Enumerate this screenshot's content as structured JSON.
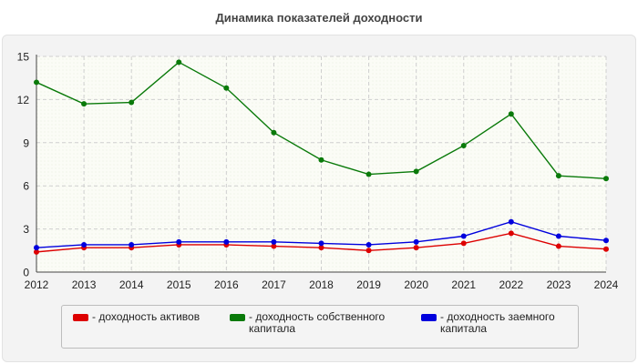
{
  "chart_data": {
    "type": "line",
    "title": "Динамика показателей доходности",
    "xlabel": "",
    "ylabel": "",
    "x": [
      "2012",
      "2013",
      "2014",
      "2015",
      "2016",
      "2017",
      "2018",
      "2019",
      "2020",
      "2021",
      "2022",
      "2023",
      "2024"
    ],
    "ylim": [
      0,
      15
    ],
    "yticks": [
      "0",
      "3",
      "6",
      "9",
      "12",
      "15"
    ],
    "grid": true,
    "legend_position": "bottom",
    "series": [
      {
        "name": "- доходность активов",
        "color": "#dd0000",
        "values": [
          1.4,
          1.7,
          1.7,
          1.9,
          1.9,
          1.8,
          1.7,
          1.5,
          1.7,
          2.0,
          2.7,
          1.8,
          1.6
        ]
      },
      {
        "name": "- доходность собственного\nкапитала",
        "color": "#0a7a0a",
        "values": [
          13.2,
          11.7,
          11.8,
          14.6,
          12.8,
          9.7,
          7.8,
          6.8,
          7.0,
          8.8,
          11.0,
          6.7,
          6.5
        ]
      },
      {
        "name": "- доходность заемного\nкапитала",
        "color": "#0000dd",
        "values": [
          1.7,
          1.9,
          1.9,
          2.1,
          2.1,
          2.1,
          2.0,
          1.9,
          2.1,
          2.5,
          3.5,
          2.5,
          2.2
        ]
      }
    ]
  }
}
